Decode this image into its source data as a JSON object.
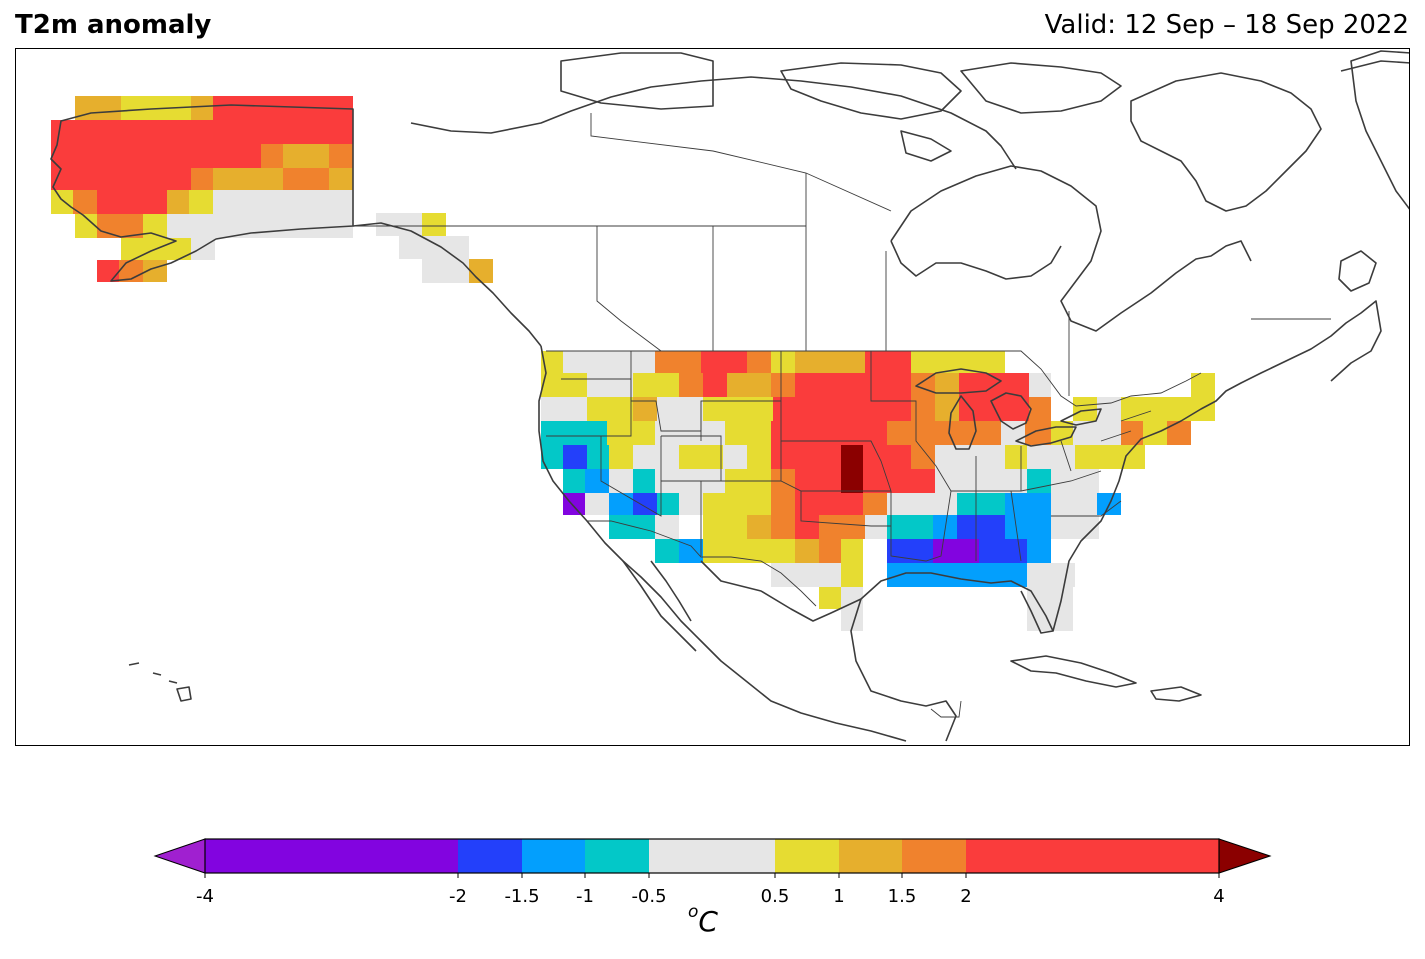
{
  "header": {
    "title": "T2m anomaly",
    "valid": "Valid: 12 Sep – 18 Sep 2022"
  },
  "colorbar": {
    "unit_base": "C",
    "unit_sup": "o",
    "ticks": [
      "-4",
      "-2",
      "-1.5",
      "-1",
      "-0.5",
      "0.5",
      "1",
      "1.5",
      "2",
      "4"
    ],
    "bins": [
      {
        "from": -4,
        "to": -2,
        "color": "#8204e0"
      },
      {
        "from": -2,
        "to": -1.5,
        "color": "#2340fa"
      },
      {
        "from": -1.5,
        "to": -1,
        "color": "#039ffd"
      },
      {
        "from": -1,
        "to": -0.5,
        "color": "#03c8c8"
      },
      {
        "from": -0.5,
        "to": 0.5,
        "color": "#e6e6e6"
      },
      {
        "from": 0.5,
        "to": 1,
        "color": "#e6dc32"
      },
      {
        "from": 1,
        "to": 1.5,
        "color": "#e6af2d"
      },
      {
        "from": 1.5,
        "to": 2,
        "color": "#f0822d"
      },
      {
        "from": 2,
        "to": 4,
        "color": "#fa3c3c"
      }
    ],
    "under_color": "#a020d0",
    "over_color": "#8b0000"
  },
  "map": {
    "coastline_color": "#3c3c3c",
    "border_color": "#3c3c3c"
  }
}
